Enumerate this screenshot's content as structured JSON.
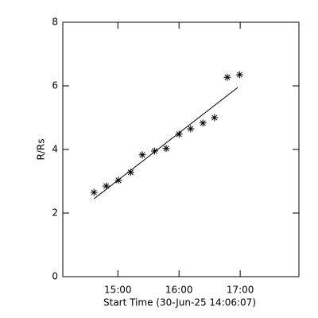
{
  "chart_data": {
    "type": "scatter",
    "xlabel": "Start Time (30-Jun-25 14:06:07)",
    "ylabel": "R/Rs",
    "xlim": [
      14.1,
      17.96
    ],
    "xticks": [
      {
        "value": 15,
        "label": "15:00"
      },
      {
        "value": 16,
        "label": "16:00"
      },
      {
        "value": 17,
        "label": "17:00"
      }
    ],
    "ylim": [
      0,
      8
    ],
    "yticks": [
      0,
      2,
      4,
      6,
      8
    ],
    "series": [
      {
        "type": "scatter",
        "color": "#000000",
        "x": [
          14.61,
          14.81,
          15.01,
          15.21,
          15.4,
          15.6,
          15.79,
          16.0,
          16.19,
          16.39,
          16.58,
          16.79,
          16.99
        ],
        "values": [
          2.65,
          2.85,
          3.03,
          3.28,
          3.83,
          3.95,
          4.03,
          4.48,
          4.65,
          4.83,
          5.0,
          6.27,
          6.35
        ]
      },
      {
        "type": "line",
        "color": "#000000",
        "x": [
          14.61,
          16.96
        ],
        "values": [
          2.45,
          5.95
        ]
      }
    ]
  }
}
